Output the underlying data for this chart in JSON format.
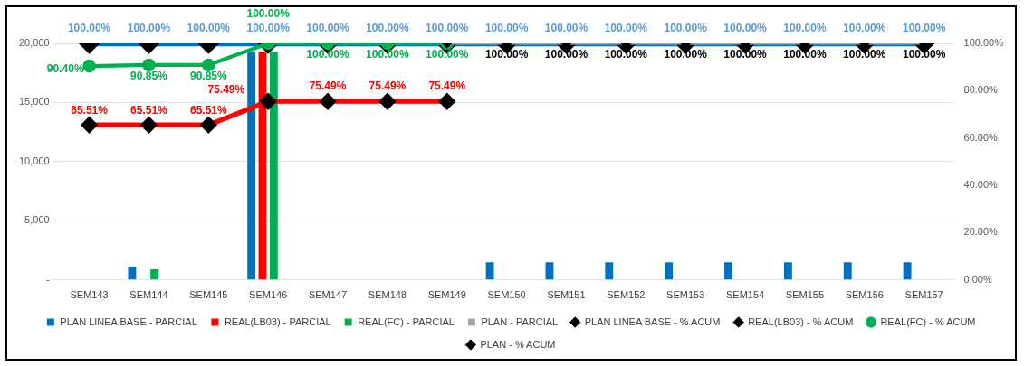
{
  "chart_data": {
    "type": "bar",
    "categories": [
      "SEM143",
      "SEM144",
      "SEM145",
      "SEM146",
      "SEM147",
      "SEM148",
      "SEM149",
      "SEM150",
      "SEM151",
      "SEM152",
      "SEM153",
      "SEM154",
      "SEM155",
      "SEM156",
      "SEM157"
    ],
    "series": [
      {
        "name": "PLAN LINEA BASE - PARCIAL",
        "color": "#0070c0",
        "values": [
          0,
          1100,
          0,
          19300,
          0,
          0,
          0,
          1500,
          1500,
          1500,
          1500,
          1500,
          1500,
          1500,
          1500
        ]
      },
      {
        "name": "REAL(LB03) - PARCIAL",
        "color": "#ff0000",
        "values": [
          0,
          0,
          0,
          19300,
          0,
          0,
          0,
          null,
          null,
          null,
          null,
          null,
          null,
          null,
          null
        ]
      },
      {
        "name": "REAL(FC) - PARCIAL",
        "color": "#00b050",
        "values": [
          0,
          900,
          0,
          19300,
          0,
          0,
          0,
          null,
          null,
          null,
          null,
          null,
          null,
          null,
          null
        ]
      },
      {
        "name": "PLAN - PARCIAL",
        "color": "#a6a6a6",
        "values": [
          0,
          0,
          0,
          0,
          0,
          0,
          0,
          0,
          0,
          0,
          0,
          0,
          0,
          0,
          0
        ]
      },
      {
        "name": "PLAN LINEA BASE - % ACUM",
        "type": "line",
        "axis": "y2",
        "marker": "diamond",
        "color": "#0070c0",
        "values": [
          100,
          100,
          100,
          100,
          100,
          100,
          100,
          100,
          100,
          100,
          100,
          100,
          100,
          100,
          100
        ],
        "value_labels": [
          "100.00%",
          "100.00%",
          "100.00%",
          "100.00%",
          "100.00%",
          "100.00%",
          "100.00%",
          "100.00%",
          "100.00%",
          "100.00%",
          "100.00%",
          "100.00%",
          "100.00%",
          "100.00%",
          "100.00%"
        ]
      },
      {
        "name": "REAL(LB03) - % ACUM",
        "type": "line",
        "axis": "y2",
        "marker": "diamond",
        "color": "#ff0000",
        "values": [
          65.51,
          65.51,
          65.51,
          75.49,
          75.49,
          75.49,
          75.49,
          null,
          null,
          null,
          null,
          null,
          null,
          null,
          null
        ],
        "value_labels": [
          "65.51%",
          "65.51%",
          "65.51%",
          "75.49%",
          "75.49%",
          "75.49%",
          "75.49%",
          null,
          null,
          null,
          null,
          null,
          null,
          null,
          null
        ]
      },
      {
        "name": "REAL(FC) - % ACUM",
        "type": "line",
        "axis": "y2",
        "marker": "circle",
        "color": "#00b050",
        "values": [
          90.4,
          90.85,
          90.85,
          100,
          100,
          100,
          100,
          null,
          null,
          null,
          null,
          null,
          null,
          null,
          null
        ],
        "value_labels": [
          "90.40%",
          "90.85%",
          "90.85%",
          "100.00%",
          "100.00%",
          "100.00%",
          "100.00%",
          null,
          null,
          null,
          null,
          null,
          null,
          null,
          null
        ]
      },
      {
        "name": "PLAN - % ACUM",
        "type": "line",
        "axis": "y2",
        "marker": "diamond",
        "color": "#a6a6a6",
        "values": [
          null,
          null,
          null,
          null,
          null,
          null,
          100,
          100,
          100,
          100,
          100,
          100,
          100,
          100,
          100
        ],
        "value_labels": [
          null,
          null,
          null,
          null,
          null,
          null,
          null,
          "100.00%",
          "100.00%",
          "100.00%",
          "100.00%",
          "100.00%",
          "100.00%",
          "100.00%",
          "100.00%"
        ]
      }
    ],
    "ylim": [
      0,
      20000
    ],
    "yticks": [
      {
        "value": 0,
        "label": "-"
      },
      {
        "value": 5000,
        "label": "5,000"
      },
      {
        "value": 10000,
        "label": "10,000"
      },
      {
        "value": 15000,
        "label": "15,000"
      },
      {
        "value": 20000,
        "label": "20,000"
      }
    ],
    "y2lim": [
      0,
      100
    ],
    "y2ticks": [
      {
        "value": 0,
        "label": "0.00%"
      },
      {
        "value": 20,
        "label": "20.00%"
      },
      {
        "value": 40,
        "label": "40.00%"
      },
      {
        "value": 60,
        "label": "60.00%"
      },
      {
        "value": 80,
        "label": "80.00%"
      },
      {
        "value": 100,
        "label": "100.00%"
      }
    ],
    "grid": "y",
    "legend": "bottom"
  }
}
